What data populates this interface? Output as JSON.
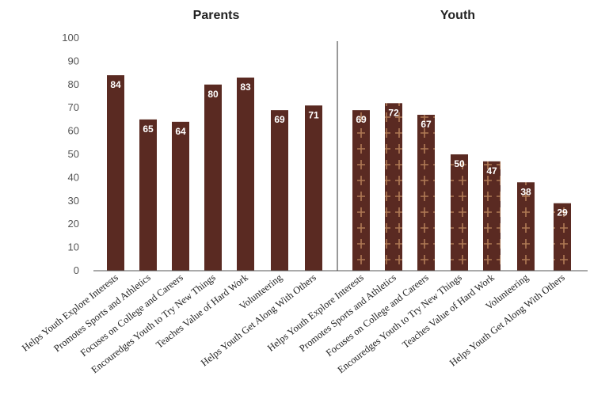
{
  "chart_data": {
    "type": "bar",
    "ylim": [
      0,
      100
    ],
    "yticks": [
      0,
      10,
      20,
      30,
      40,
      50,
      60,
      70,
      80,
      90,
      100
    ],
    "grid": false,
    "categories": [
      "Helps Youth Explore Interests",
      "Promotes Sports and Athletics",
      "Focuses on College and Careers",
      "Encouredges Youth to Try New Things",
      "Teaches Value of Hard Work",
      "Volunteering",
      "Helps Youth Get Along With Others"
    ],
    "panels": [
      {
        "title": "Parents",
        "color": "#5a2a22",
        "pattern": "solid",
        "values": [
          84,
          65,
          64,
          80,
          83,
          69,
          71
        ]
      },
      {
        "title": "Youth",
        "color": "#5a2a22",
        "pattern": "cross",
        "pattern_color": "#b07a55",
        "values": [
          69,
          72,
          67,
          50,
          47,
          38,
          29
        ]
      }
    ]
  }
}
